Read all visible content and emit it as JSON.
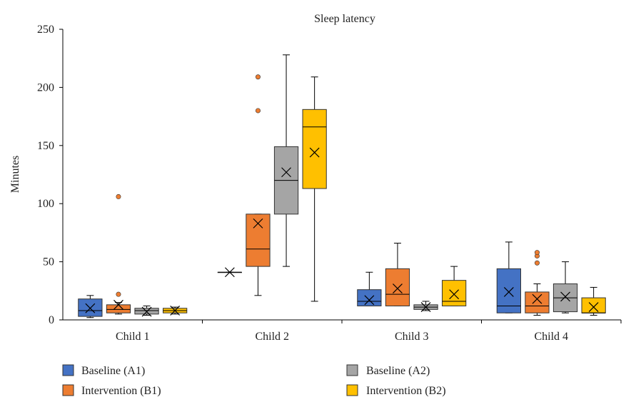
{
  "chart_data": {
    "type": "box",
    "title": "Sleep latency",
    "ylabel": "Minutes",
    "xlabel": "",
    "ylim": [
      0,
      250
    ],
    "yticks": [
      0,
      50,
      100,
      150,
      200,
      250
    ],
    "categories": [
      "Child 1",
      "Child 2",
      "Child 3",
      "Child 4"
    ],
    "grid": false,
    "legend_position": "bottom",
    "series": [
      {
        "name": "Baseline (A1)",
        "color": "#4472C4",
        "boxes": [
          {
            "min": 2,
            "q1": 3,
            "median": 8,
            "q3": 18,
            "max": 21,
            "mean": 10,
            "outliers": []
          },
          {
            "min": 41,
            "q1": 41,
            "median": 41,
            "q3": 41,
            "max": 41,
            "mean": 41,
            "outliers": []
          },
          {
            "min": 12,
            "q1": 12,
            "median": 16,
            "q3": 26,
            "max": 41,
            "mean": 17,
            "outliers": []
          },
          {
            "min": 6,
            "q1": 6,
            "median": 12,
            "q3": 44,
            "max": 67,
            "mean": 24,
            "outliers": []
          }
        ]
      },
      {
        "name": "Intervention (B1)",
        "color": "#ED7D31",
        "boxes": [
          {
            "min": 5,
            "q1": 6,
            "median": 9,
            "q3": 13,
            "max": 15,
            "mean": 13,
            "outliers": [
              22,
              106
            ]
          },
          {
            "min": 21,
            "q1": 46,
            "median": 61,
            "q3": 91,
            "max": 91,
            "mean": 83,
            "outliers": [
              180,
              209
            ]
          },
          {
            "min": 12,
            "q1": 12,
            "median": 22,
            "q3": 44,
            "max": 66,
            "mean": 27,
            "outliers": []
          },
          {
            "min": 4,
            "q1": 6,
            "median": 12,
            "q3": 24,
            "max": 31,
            "mean": 18,
            "outliers": [
              49,
              55,
              58
            ]
          }
        ]
      },
      {
        "name": "Baseline (A2)",
        "color": "#A5A5A5",
        "boxes": [
          {
            "min": 4,
            "q1": 5,
            "median": 8,
            "q3": 10,
            "max": 12,
            "mean": 7,
            "outliers": []
          },
          {
            "min": 46,
            "q1": 91,
            "median": 120,
            "q3": 149,
            "max": 228,
            "mean": 127,
            "outliers": []
          },
          {
            "min": 8,
            "q1": 9,
            "median": 11,
            "q3": 13,
            "max": 16,
            "mean": 11,
            "outliers": []
          },
          {
            "min": 6,
            "q1": 7,
            "median": 19,
            "q3": 31,
            "max": 50,
            "mean": 20,
            "outliers": []
          }
        ]
      },
      {
        "name": "Intervention (B2)",
        "color": "#FFC000",
        "boxes": [
          {
            "min": 5,
            "q1": 6,
            "median": 8,
            "q3": 10,
            "max": 11,
            "mean": 8,
            "outliers": []
          },
          {
            "min": 16,
            "q1": 113,
            "median": 166,
            "q3": 181,
            "max": 209,
            "mean": 144,
            "outliers": []
          },
          {
            "min": 12,
            "q1": 12,
            "median": 16,
            "q3": 34,
            "max": 46,
            "mean": 22,
            "outliers": []
          },
          {
            "min": 4,
            "q1": 6,
            "median": 6,
            "q3": 19,
            "max": 28,
            "mean": 11,
            "outliers": []
          }
        ]
      }
    ]
  },
  "legend": {
    "items": [
      {
        "label": "Baseline (A1)",
        "color": "#4472C4"
      },
      {
        "label": "Intervention (B1)",
        "color": "#ED7D31"
      },
      {
        "label": "Baseline (A2)",
        "color": "#A5A5A5"
      },
      {
        "label": "Intervention (B2)",
        "color": "#FFC000"
      }
    ]
  }
}
